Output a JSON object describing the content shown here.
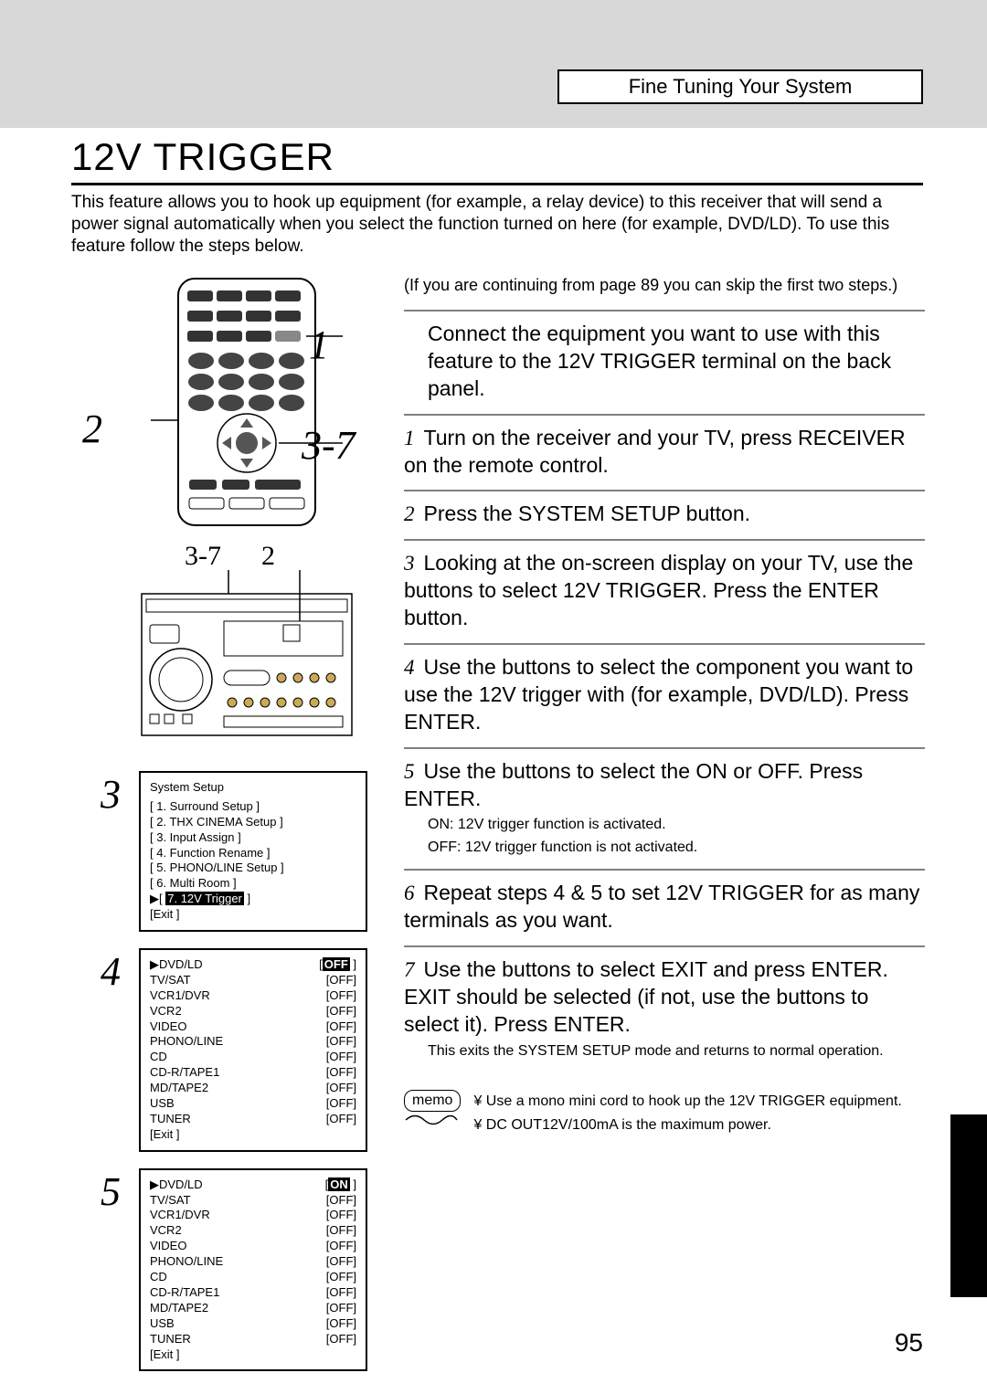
{
  "header": {
    "section_title": "Fine Tuning Your System"
  },
  "title": "12V TRIGGER",
  "intro": "This feature allows you to hook up equipment (for example, a relay device) to this receiver that will send a power signal automatically when you select the function turned on here (for example, DVD/LD). To use this feature follow the steps below.",
  "callouts": {
    "c1": "1",
    "c2": "2",
    "c37_a": "3-7",
    "c37_b": "3-7",
    "c2_b": "2",
    "c3": "3",
    "c4": "4",
    "c5": "5"
  },
  "screen3": {
    "title": "System Setup",
    "items": [
      "[ 1. Surround Setup          ]",
      "[ 2. THX CINEMA Setup  ]",
      "[ 3. Input Assign               ]",
      "[ 4. Function Rename       ]",
      "[ 5. PHONO/LINE Setup   ]",
      "[ 6. Multi Room                ]"
    ],
    "selected": "7. 12V Trigger",
    "exit": "[Exit                                 ]"
  },
  "screen4": {
    "rows": [
      {
        "label": "▶DVD/LD",
        "state": "OFF",
        "sel": true
      },
      {
        "label": "TV/SAT",
        "state": "[OFF]"
      },
      {
        "label": "VCR1/DVR",
        "state": "[OFF]"
      },
      {
        "label": "VCR2",
        "state": "[OFF]"
      },
      {
        "label": "VIDEO",
        "state": "[OFF]"
      },
      {
        "label": "PHONO/LINE",
        "state": "[OFF]"
      },
      {
        "label": "CD",
        "state": "[OFF]"
      },
      {
        "label": "CD-R/TAPE1",
        "state": "[OFF]"
      },
      {
        "label": "MD/TAPE2",
        "state": "[OFF]"
      },
      {
        "label": "USB",
        "state": "[OFF]"
      },
      {
        "label": "TUNER",
        "state": "[OFF]"
      }
    ],
    "exit": "[Exit ]"
  },
  "screen5": {
    "rows": [
      {
        "label": "▶DVD/LD",
        "state": "ON",
        "sel": true
      },
      {
        "label": "TV/SAT",
        "state": "[OFF]"
      },
      {
        "label": "VCR1/DVR",
        "state": "[OFF]"
      },
      {
        "label": "VCR2",
        "state": "[OFF]"
      },
      {
        "label": "VIDEO",
        "state": "[OFF]"
      },
      {
        "label": "PHONO/LINE",
        "state": "[OFF]"
      },
      {
        "label": "CD",
        "state": "[OFF]"
      },
      {
        "label": "CD-R/TAPE1",
        "state": "[OFF]"
      },
      {
        "label": "MD/TAPE2",
        "state": "[OFF]"
      },
      {
        "label": "USB",
        "state": "[OFF]"
      },
      {
        "label": "TUNER",
        "state": "[OFF]"
      }
    ],
    "exit": "[Exit ]"
  },
  "right": {
    "note_top": "(If you are continuing from page 89 you can skip the first two steps.)",
    "pre_step": "Connect the equipment you want to use with this feature to the 12V TRIGGER terminal on the back panel.",
    "s1": "Turn on the receiver and your TV, press RECEIVER on the remote control.",
    "s2": "Press the SYSTEM SETUP button.",
    "s3": "Looking at the on-screen display on your TV, use the          buttons to select 12V TRIGGER. Press the ENTER button.",
    "s4": "Use the          buttons to select the component you want to use the 12V trigger with (for example, DVD/LD). Press ENTER.",
    "s5": "Use the          buttons to select the ON or OFF. Press ENTER.",
    "s5_sub1": "ON: 12V trigger function is activated.",
    "s5_sub2": "OFF: 12V trigger function is not activated.",
    "s6": "Repeat steps 4 & 5 to set 12V TRIGGER for as many terminals as you want.",
    "s7": "Use the          buttons to select EXIT and press ENTER. EXIT should be selected (if not, use the          buttons to select it). Press ENTER.",
    "s7_sub": "This exits the SYSTEM SETUP mode and returns to normal operation.",
    "n1": "1",
    "n2": "2",
    "n3": "3",
    "n4": "4",
    "n5": "5",
    "n6": "6",
    "n7": "7"
  },
  "memo": {
    "label": "memo",
    "line1": "¥ Use a mono mini cord to hook up the 12V TRIGGER equipment.",
    "line2": "¥ DC OUT12V/100mA is the maximum power."
  },
  "page_number": "95",
  "colors": {
    "gray_bar": "#d8d8d8",
    "divider": "#808080",
    "text": "#000000",
    "bg": "#ffffff"
  }
}
